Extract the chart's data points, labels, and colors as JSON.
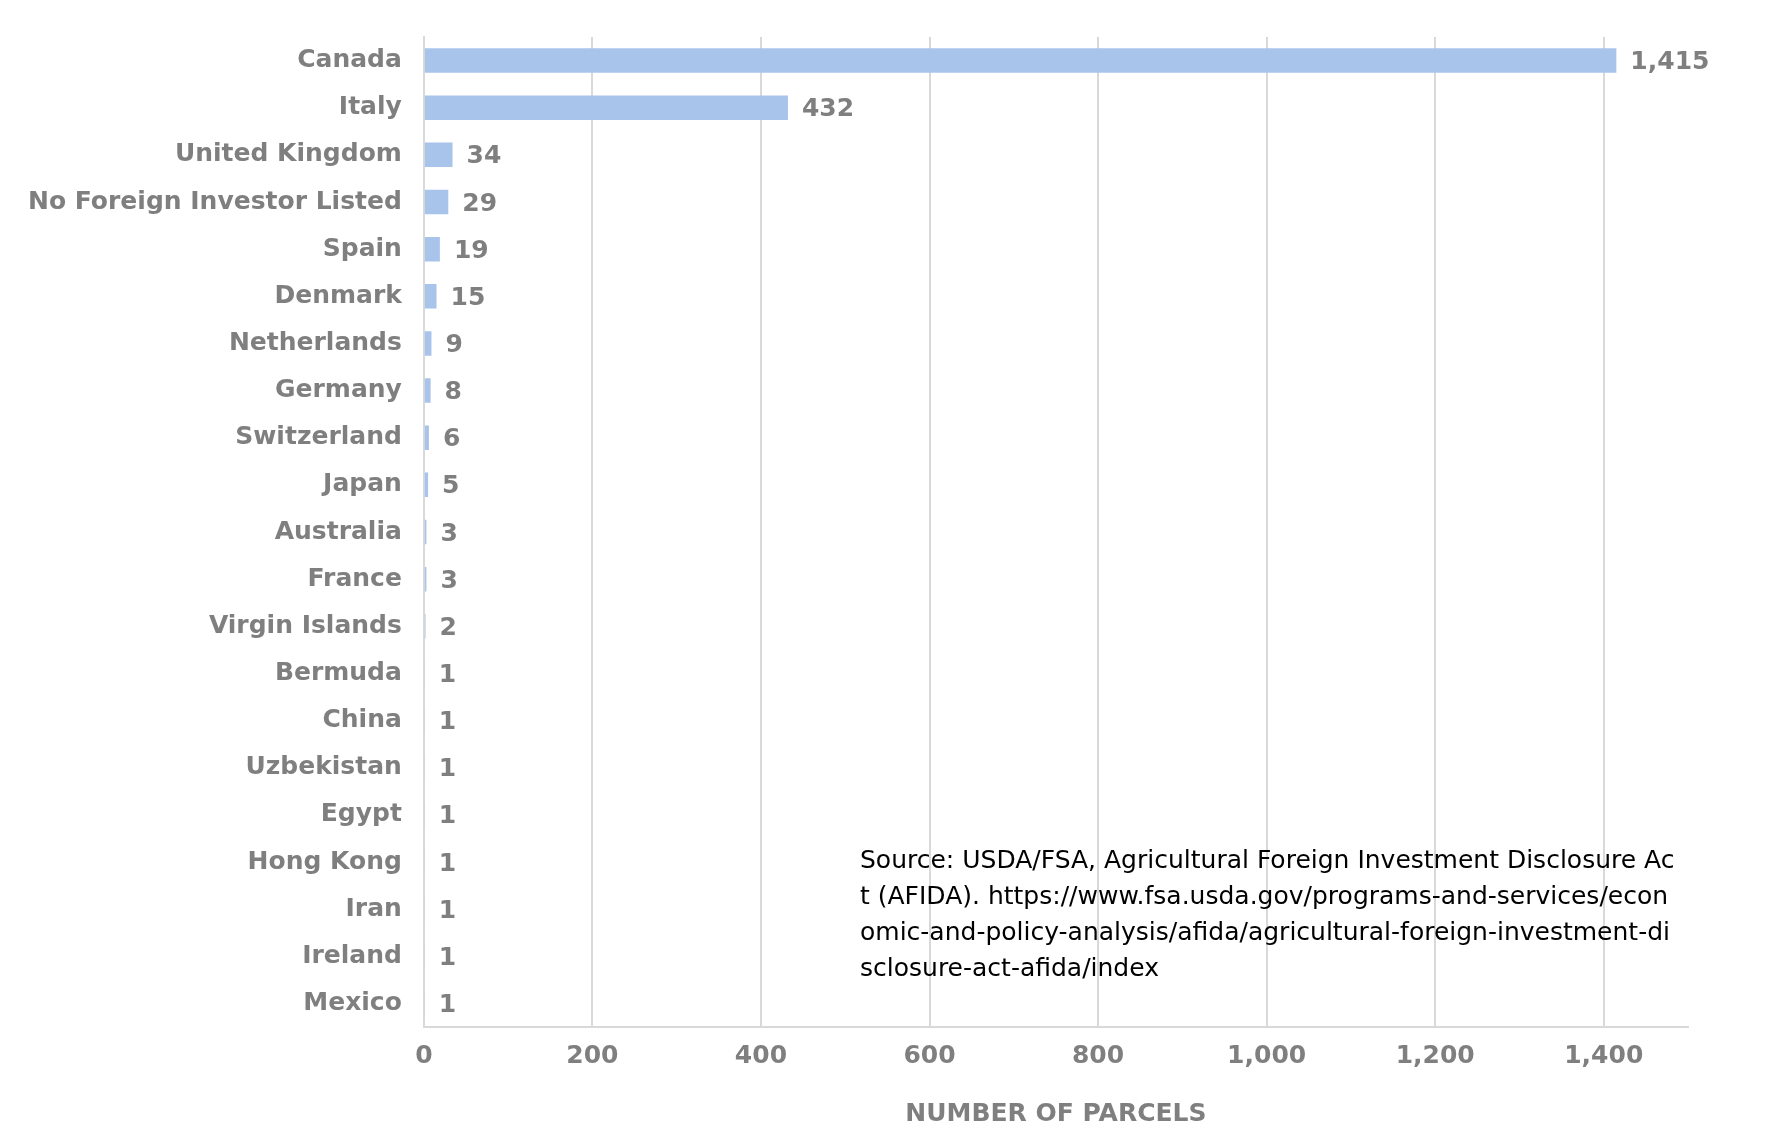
{
  "chart_data": {
    "type": "bar",
    "orientation": "horizontal",
    "xlabel": "NUMBER OF PARCELS",
    "categories": [
      "Canada",
      "Italy",
      "United Kingdom",
      "No Foreign Investor Listed",
      "Spain",
      "Denmark",
      "Netherlands",
      "Germany",
      "Switzerland",
      "Japan",
      "Australia",
      "France",
      "Virgin Islands",
      "Bermuda",
      "China",
      "Uzbekistan",
      "Egypt",
      "Hong Kong",
      "Iran",
      "Ireland",
      "Mexico"
    ],
    "values": [
      1415,
      432,
      34,
      29,
      19,
      15,
      9,
      8,
      6,
      5,
      3,
      3,
      2,
      1,
      1,
      1,
      1,
      1,
      1,
      1,
      1
    ],
    "value_labels": [
      "1,415",
      "432",
      "34",
      "29",
      "19",
      "15",
      "9",
      "8",
      "6",
      "5",
      "3",
      "3",
      "2",
      "1",
      "1",
      "1",
      "1",
      "1",
      "1",
      "1",
      "1"
    ],
    "color": "#a9c4eb",
    "xlim": [
      0,
      1500
    ],
    "xticks": [
      0,
      200,
      400,
      600,
      800,
      {
        "value": 1000,
        "label": "1,000"
      },
      {
        "value": 1200,
        "label": "1,200"
      },
      {
        "value": 1400,
        "label": "1,400"
      }
    ],
    "grid": "x",
    "annotations": [
      "Source: USDA/FSA, Agricultural Foreign Investment Disclosure Act (AFIDA). https://www.fsa.usda.gov/programs-and-services/economic-and-policy-analysis/afida/agricultural-foreign-investment-disclosure-act-afida/index"
    ]
  }
}
